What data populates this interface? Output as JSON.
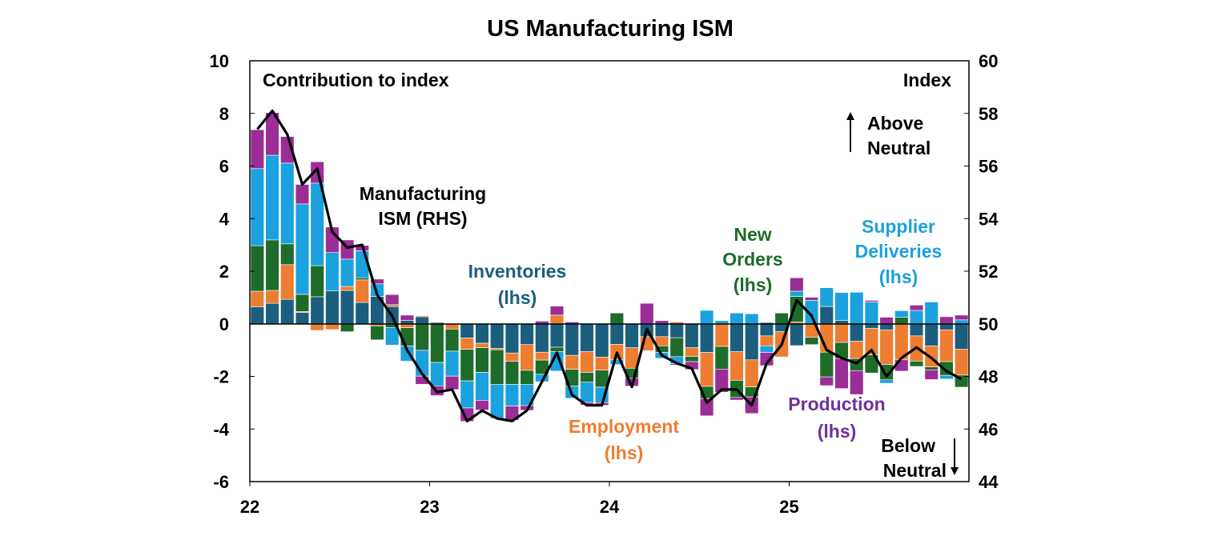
{
  "chart_data": {
    "type": "bar",
    "stacked": true,
    "title": "US Manufacturing ISM",
    "left_axis_label": "Contribution to index",
    "right_axis_label": "Index",
    "ylim_left": [
      -6,
      10
    ],
    "ylim_right": [
      44,
      60
    ],
    "yticks_left": [
      "10",
      "8",
      "6",
      "4",
      "2",
      "0",
      "-2",
      "-4",
      "-6"
    ],
    "yticks_right": [
      "60",
      "58",
      "56",
      "54",
      "52",
      "50",
      "48",
      "46",
      "44"
    ],
    "xticks": [
      "22",
      "23",
      "24",
      "25"
    ],
    "x": [
      "Jan-22",
      "Feb-22",
      "Mar-22",
      "Apr-22",
      "May-22",
      "Jun-22",
      "Jul-22",
      "Aug-22",
      "Sep-22",
      "Oct-22",
      "Nov-22",
      "Dec-22",
      "Jan-23",
      "Feb-23",
      "Mar-23",
      "Apr-23",
      "May-23",
      "Jun-23",
      "Jul-23",
      "Aug-23",
      "Sep-23",
      "Oct-23",
      "Nov-23",
      "Dec-23",
      "Jan-24",
      "Feb-24",
      "Mar-24",
      "Apr-24",
      "May-24",
      "Jun-24",
      "Jul-24",
      "Aug-24",
      "Sep-24",
      "Oct-24",
      "Nov-24",
      "Dec-24",
      "Jan-25",
      "Feb-25",
      "Mar-25",
      "Apr-25",
      "May-25",
      "Jun-25",
      "Jul-25",
      "Aug-25",
      "Sep-25",
      "Oct-25",
      "Nov-25",
      "Dec-25"
    ],
    "grid": false,
    "series": [
      {
        "name": "Inventories (lhs)",
        "color": "#1b5e7e",
        "values": [
          0.64,
          0.78,
          0.93,
          0.43,
          1.03,
          1.25,
          1.27,
          0.81,
          1.04,
          0.66,
          0.13,
          0.27,
          0.05,
          0,
          -0.54,
          -0.74,
          -0.93,
          -1.11,
          -0.79,
          -1.08,
          -0.89,
          -1.2,
          -1.06,
          -1.27,
          -0.78,
          -0.91,
          -0.49,
          -0.49,
          -0.53,
          -0.91,
          -1.09,
          0,
          -1.06,
          -1.37,
          -0.46,
          -0.3,
          -0.83,
          0,
          0.66,
          0.13,
          -0.66,
          -0.17,
          -0.23,
          0,
          -0.46,
          -0.84,
          -0.23,
          -0.96
        ]
      },
      {
        "name": "Employment (lhs)",
        "color": "#ed7d31",
        "values": [
          0.6,
          0.49,
          1.32,
          0.04,
          -0.25,
          -0.22,
          0.15,
          0.86,
          -0.08,
          0.07,
          -0.15,
          0.04,
          0,
          -0.2,
          -0.43,
          -0.17,
          -0.06,
          -0.32,
          -0.98,
          -0.3,
          0.33,
          -0.53,
          -0.79,
          -0.49,
          -0.59,
          -0.78,
          -0.53,
          -0.35,
          0.07,
          -0.33,
          -1.29,
          -0.86,
          -1.09,
          -1.03,
          -0.38,
          -0.96,
          0.07,
          -0.51,
          -1.08,
          -0.71,
          -0.66,
          -1.01,
          -1.32,
          -1.37,
          -0.96,
          -0.8,
          -1.21,
          -0.99
        ]
      },
      {
        "name": "New Orders (lhs)",
        "color": "#1e6b2a",
        "values": [
          1.73,
          1.92,
          0.79,
          0.65,
          1.18,
          0,
          -0.3,
          0.08,
          -0.53,
          -0.15,
          -0.69,
          -1.01,
          -1.47,
          -0.84,
          -1.2,
          -0.94,
          -1.32,
          -0.87,
          -0.54,
          -0.54,
          -0.17,
          -0.64,
          -0.37,
          -0.65,
          0.41,
          -0.38,
          0,
          -0.25,
          -0.72,
          -0.2,
          -0.46,
          -0.86,
          -0.65,
          -0.38,
          0.05,
          0.41,
          0.97,
          -0.28,
          -0.94,
          -0.61,
          -0.46,
          -0.69,
          -0.58,
          0.25,
          -0.2,
          -0.11,
          -0.52,
          -0.46
        ]
      },
      {
        "name": "Supplier Deliveries (lhs)",
        "color": "#1ba1dd",
        "values": [
          2.93,
          3.22,
          3.07,
          3.44,
          3.14,
          1.46,
          1.04,
          1.03,
          0.48,
          -0.66,
          -0.58,
          -0.98,
          -0.89,
          -0.95,
          -1.03,
          -1.06,
          -1.29,
          -0.83,
          -0.8,
          -0.28,
          -0.74,
          -0.46,
          -0.77,
          -0.59,
          -0.18,
          0,
          0,
          -0.22,
          -0.27,
          0,
          0.51,
          0.12,
          0.41,
          0.38,
          -0.25,
          0,
          0.2,
          0.89,
          0.71,
          1.06,
          1.2,
          0.83,
          -0.13,
          0.25,
          0.51,
          0.83,
          -0.14,
          0.15
        ]
      },
      {
        "name": "Production (lhs)",
        "color": "#9b2d96",
        "values": [
          1.48,
          1.62,
          1.01,
          0.74,
          0.81,
          0.97,
          0.73,
          0.2,
          0.18,
          0.38,
          0.2,
          -0.31,
          -0.37,
          -0.51,
          -0.51,
          -0.37,
          0,
          -0.54,
          -0.18,
          0.1,
          0.34,
          0.07,
          -0.1,
          -0.1,
          0,
          -0.3,
          0.78,
          0.12,
          -0.05,
          -0.3,
          -0.66,
          -0.88,
          -0.1,
          -0.63,
          -0.5,
          0,
          0.51,
          0.12,
          -0.33,
          -1.14,
          -0.91,
          0.06,
          0.25,
          -0.43,
          0.2,
          -0.37,
          0.27,
          0.18
        ]
      }
    ],
    "line": {
      "name": "Manufacturing ISM (RHS)",
      "color": "#000000",
      "axis": "right",
      "values": [
        57.4,
        58.1,
        57.2,
        55.3,
        55.9,
        53.5,
        52.9,
        53.0,
        51.1,
        50.3,
        49.0,
        48.1,
        47.4,
        47.5,
        46.3,
        46.7,
        46.4,
        46.3,
        46.7,
        47.8,
        48.9,
        47.3,
        46.9,
        46.9,
        48.9,
        47.6,
        49.8,
        48.8,
        48.5,
        48.3,
        47.0,
        47.5,
        47.5,
        46.9,
        48.5,
        49.2,
        50.9,
        50.3,
        49.0,
        48.7,
        48.5,
        49.0,
        48.0,
        48.7,
        49.1,
        48.7,
        48.2,
        47.9
      ]
    },
    "annotations": {
      "ism": [
        "Manufacturing",
        "ISM (RHS)"
      ],
      "inventories": [
        "Inventories",
        "(lhs)"
      ],
      "new_orders": [
        "New",
        "Orders",
        "(lhs)"
      ],
      "supplier": [
        "Supplier",
        "Deliveries",
        "(lhs)"
      ],
      "employment": [
        "Employment",
        "(lhs)"
      ],
      "production": [
        "Production",
        "(lhs)"
      ],
      "above": [
        "Above",
        "Neutral"
      ],
      "below": [
        "Below",
        "Neutral"
      ]
    },
    "label_colors": {
      "inventories": "#1b5e7e",
      "employment": "#ed7d31",
      "new_orders": "#1e6b2a",
      "supplier": "#1ba1dd",
      "production": "#7030a0"
    }
  }
}
